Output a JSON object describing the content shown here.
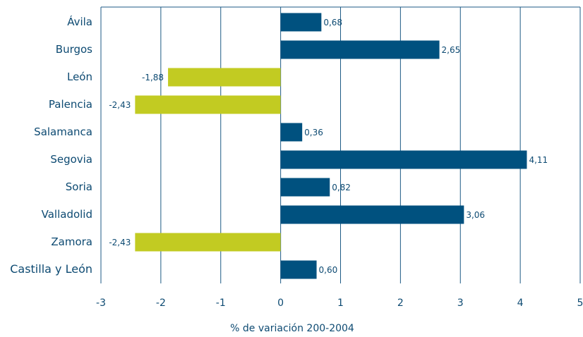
{
  "chart_data": {
    "type": "hbar",
    "categories": [
      "Ávila",
      "Burgos",
      "León",
      "Palencia",
      "Salamanca",
      "Segovia",
      "Soria",
      "Valladolid",
      "Zamora",
      "Castilla y León"
    ],
    "values": [
      0.68,
      2.65,
      -1.88,
      -2.43,
      0.36,
      4.11,
      0.82,
      3.06,
      -2.43,
      0.6
    ],
    "value_labels": [
      "0,68",
      "2,65",
      "-1,88",
      "-2,43",
      "0,36",
      "4,11",
      "0,82",
      "3,06",
      "-2,43",
      "0,60"
    ],
    "color": "#00517f",
    "negative_color": "#c2cb22",
    "xlabel": "% de variación 200-2004",
    "xlim": [
      -3,
      5
    ],
    "xticks": [
      -3,
      -2,
      -1,
      0,
      1,
      2,
      3,
      4,
      5
    ],
    "grid": true
  }
}
